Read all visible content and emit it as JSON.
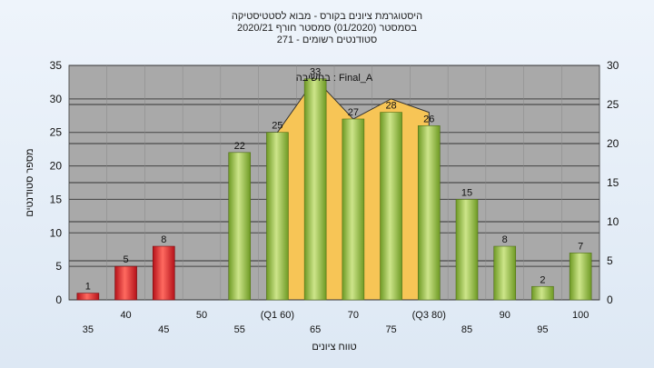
{
  "chart_data": {
    "type": "bar",
    "title_lines": [
      "היסטוגרמת ציונים בקורס - מבוא לסטטיסטיקה",
      "בסמסטר  (01/2020)  סמסטר חורף  2020/21",
      "סטודנטים רשומים - 271"
    ],
    "annotation": "בחשיבה : Final_A",
    "xlabel": "טווח ציונים",
    "ylabel": "מספר סטודנטים",
    "ylim": [
      0,
      35
    ],
    "y_ticks": [
      "0",
      "5",
      "10",
      "15",
      "20",
      "25",
      "30",
      "35"
    ],
    "y2lim": [
      0,
      30
    ],
    "y2_ticks": [
      "0",
      "5",
      "10",
      "15",
      "20",
      "25",
      "30"
    ],
    "categories": [
      "35",
      "40",
      "45",
      "50",
      "55",
      "(Q1 60)",
      "65",
      "70",
      "75",
      "(Q3 80)",
      "85",
      "90",
      "95",
      "100"
    ],
    "values": [
      1,
      5,
      8,
      0,
      22,
      25,
      33,
      27,
      28,
      26,
      15,
      8,
      2,
      7
    ],
    "bar_colors": [
      "red",
      "red",
      "red",
      "none",
      "green",
      "green",
      "green",
      "green",
      "green",
      "green",
      "green",
      "green",
      "green",
      "green"
    ],
    "value_labels": [
      "1",
      "5",
      "8",
      "",
      "22",
      "25",
      "33",
      "27",
      "28",
      "26",
      "15",
      "8",
      "2",
      "7"
    ],
    "area_range": [
      "(Q1 60)",
      "(Q3 80)"
    ],
    "area_values": [
      25,
      33,
      27,
      30,
      28
    ],
    "grid": true,
    "colors": {
      "plot_bg": "#a9a9a9",
      "area": "#f7c556",
      "green": "#8fbf3c",
      "red": "#e0242a"
    }
  }
}
